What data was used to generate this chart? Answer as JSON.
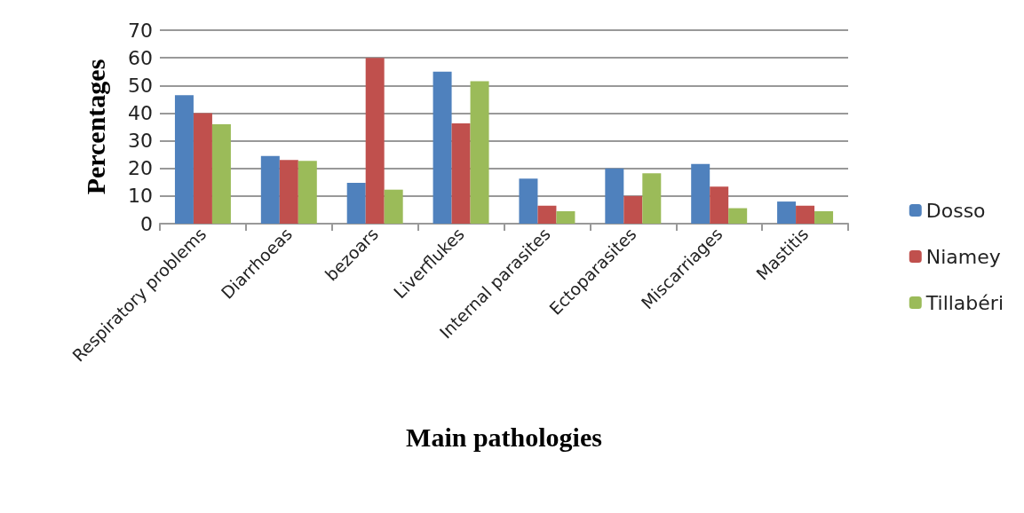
{
  "chart_data": {
    "type": "bar",
    "xlabel": "Main pathologies",
    "ylabel": "Percentages",
    "categories": [
      "Respiratory problems",
      "Diarrhoeas",
      "bezoars",
      "Liverflukes",
      "Internal parasites",
      "Ectoparasites",
      "Miscarriages",
      "Mastitis"
    ],
    "series": [
      {
        "name": "Dosso",
        "color": "#4f81bd",
        "values": [
          46.5,
          24.5,
          14.8,
          55,
          16.3,
          20,
          21.6,
          8
        ]
      },
      {
        "name": "Niamey",
        "color": "#c0504d",
        "values": [
          40,
          23,
          60,
          36.3,
          6.5,
          10,
          13.4,
          6.5
        ]
      },
      {
        "name": "Tillabéri",
        "color": "#9bbb59",
        "values": [
          36,
          22.7,
          12.3,
          51.5,
          4.5,
          18.2,
          5.6,
          4.5
        ]
      }
    ],
    "ylim": [
      0,
      70
    ],
    "yticks": [
      0,
      10,
      20,
      30,
      40,
      50,
      60,
      70
    ],
    "grid": "y",
    "legend": "right"
  }
}
